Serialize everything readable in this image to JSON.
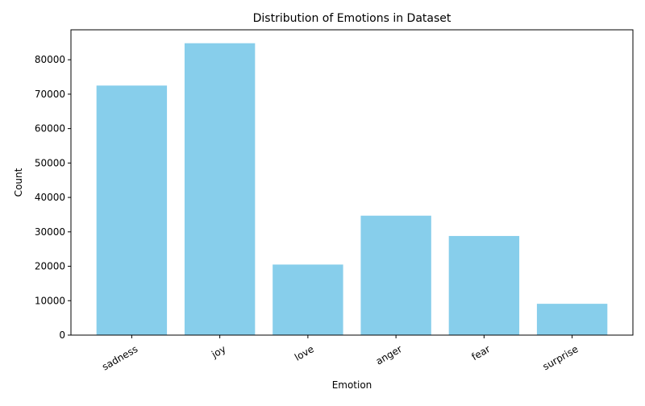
{
  "chart_data": {
    "type": "bar",
    "title": "Distribution of Emotions in Dataset",
    "xlabel": "Emotion",
    "ylabel": "Count",
    "categories": [
      "sadness",
      "joy",
      "love",
      "anger",
      "fear",
      "surprise"
    ],
    "values": [
      72500,
      84800,
      20500,
      34700,
      28800,
      9100
    ],
    "ylim": [
      0,
      88700
    ],
    "yticks": [
      0,
      10000,
      20000,
      30000,
      40000,
      50000,
      60000,
      70000,
      80000
    ],
    "x_tick_rotation_deg": 30,
    "bar_color": "#87ceeb",
    "grid": false,
    "legend": "none"
  }
}
